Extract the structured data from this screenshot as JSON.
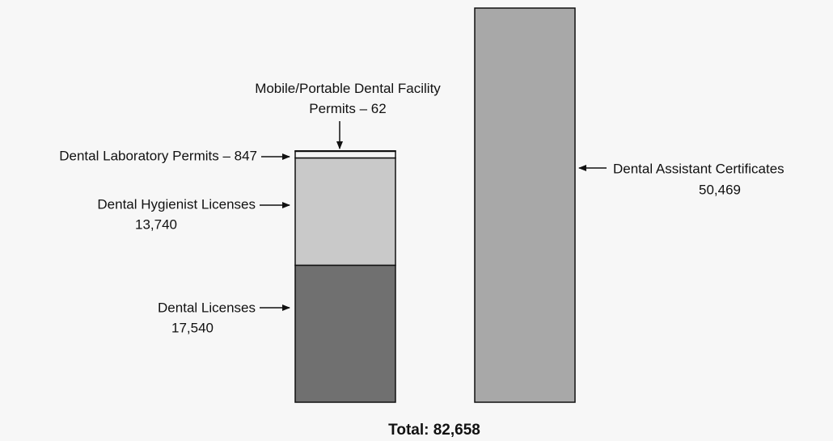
{
  "chart_data": {
    "type": "stacked_bar",
    "categories": [
      null,
      null
    ],
    "series": [
      {
        "name": "Dental Licenses",
        "color": "#707070",
        "values": [
          17540,
          null
        ],
        "value_labels": [
          "17,540",
          null
        ]
      },
      {
        "name": "Dental Hygienist Licenses",
        "color": "#c9c9c9",
        "values": [
          13740,
          null
        ],
        "value_labels": [
          "13,740",
          null
        ]
      },
      {
        "name": "Dental Laboratory Permits – 847",
        "color": "#f4f4f4",
        "values": [
          847,
          null
        ]
      },
      {
        "name": "Mobile/Portable Dental Facility Permits – 62",
        "color": "#ffffff",
        "values": [
          62,
          null
        ]
      },
      {
        "name": "Dental Assistant Certificates",
        "color": "#a8a8a8",
        "values": [
          null,
          50469
        ],
        "value_labels": [
          null,
          "50,469"
        ]
      }
    ],
    "total_label": "Total: 82,658"
  }
}
